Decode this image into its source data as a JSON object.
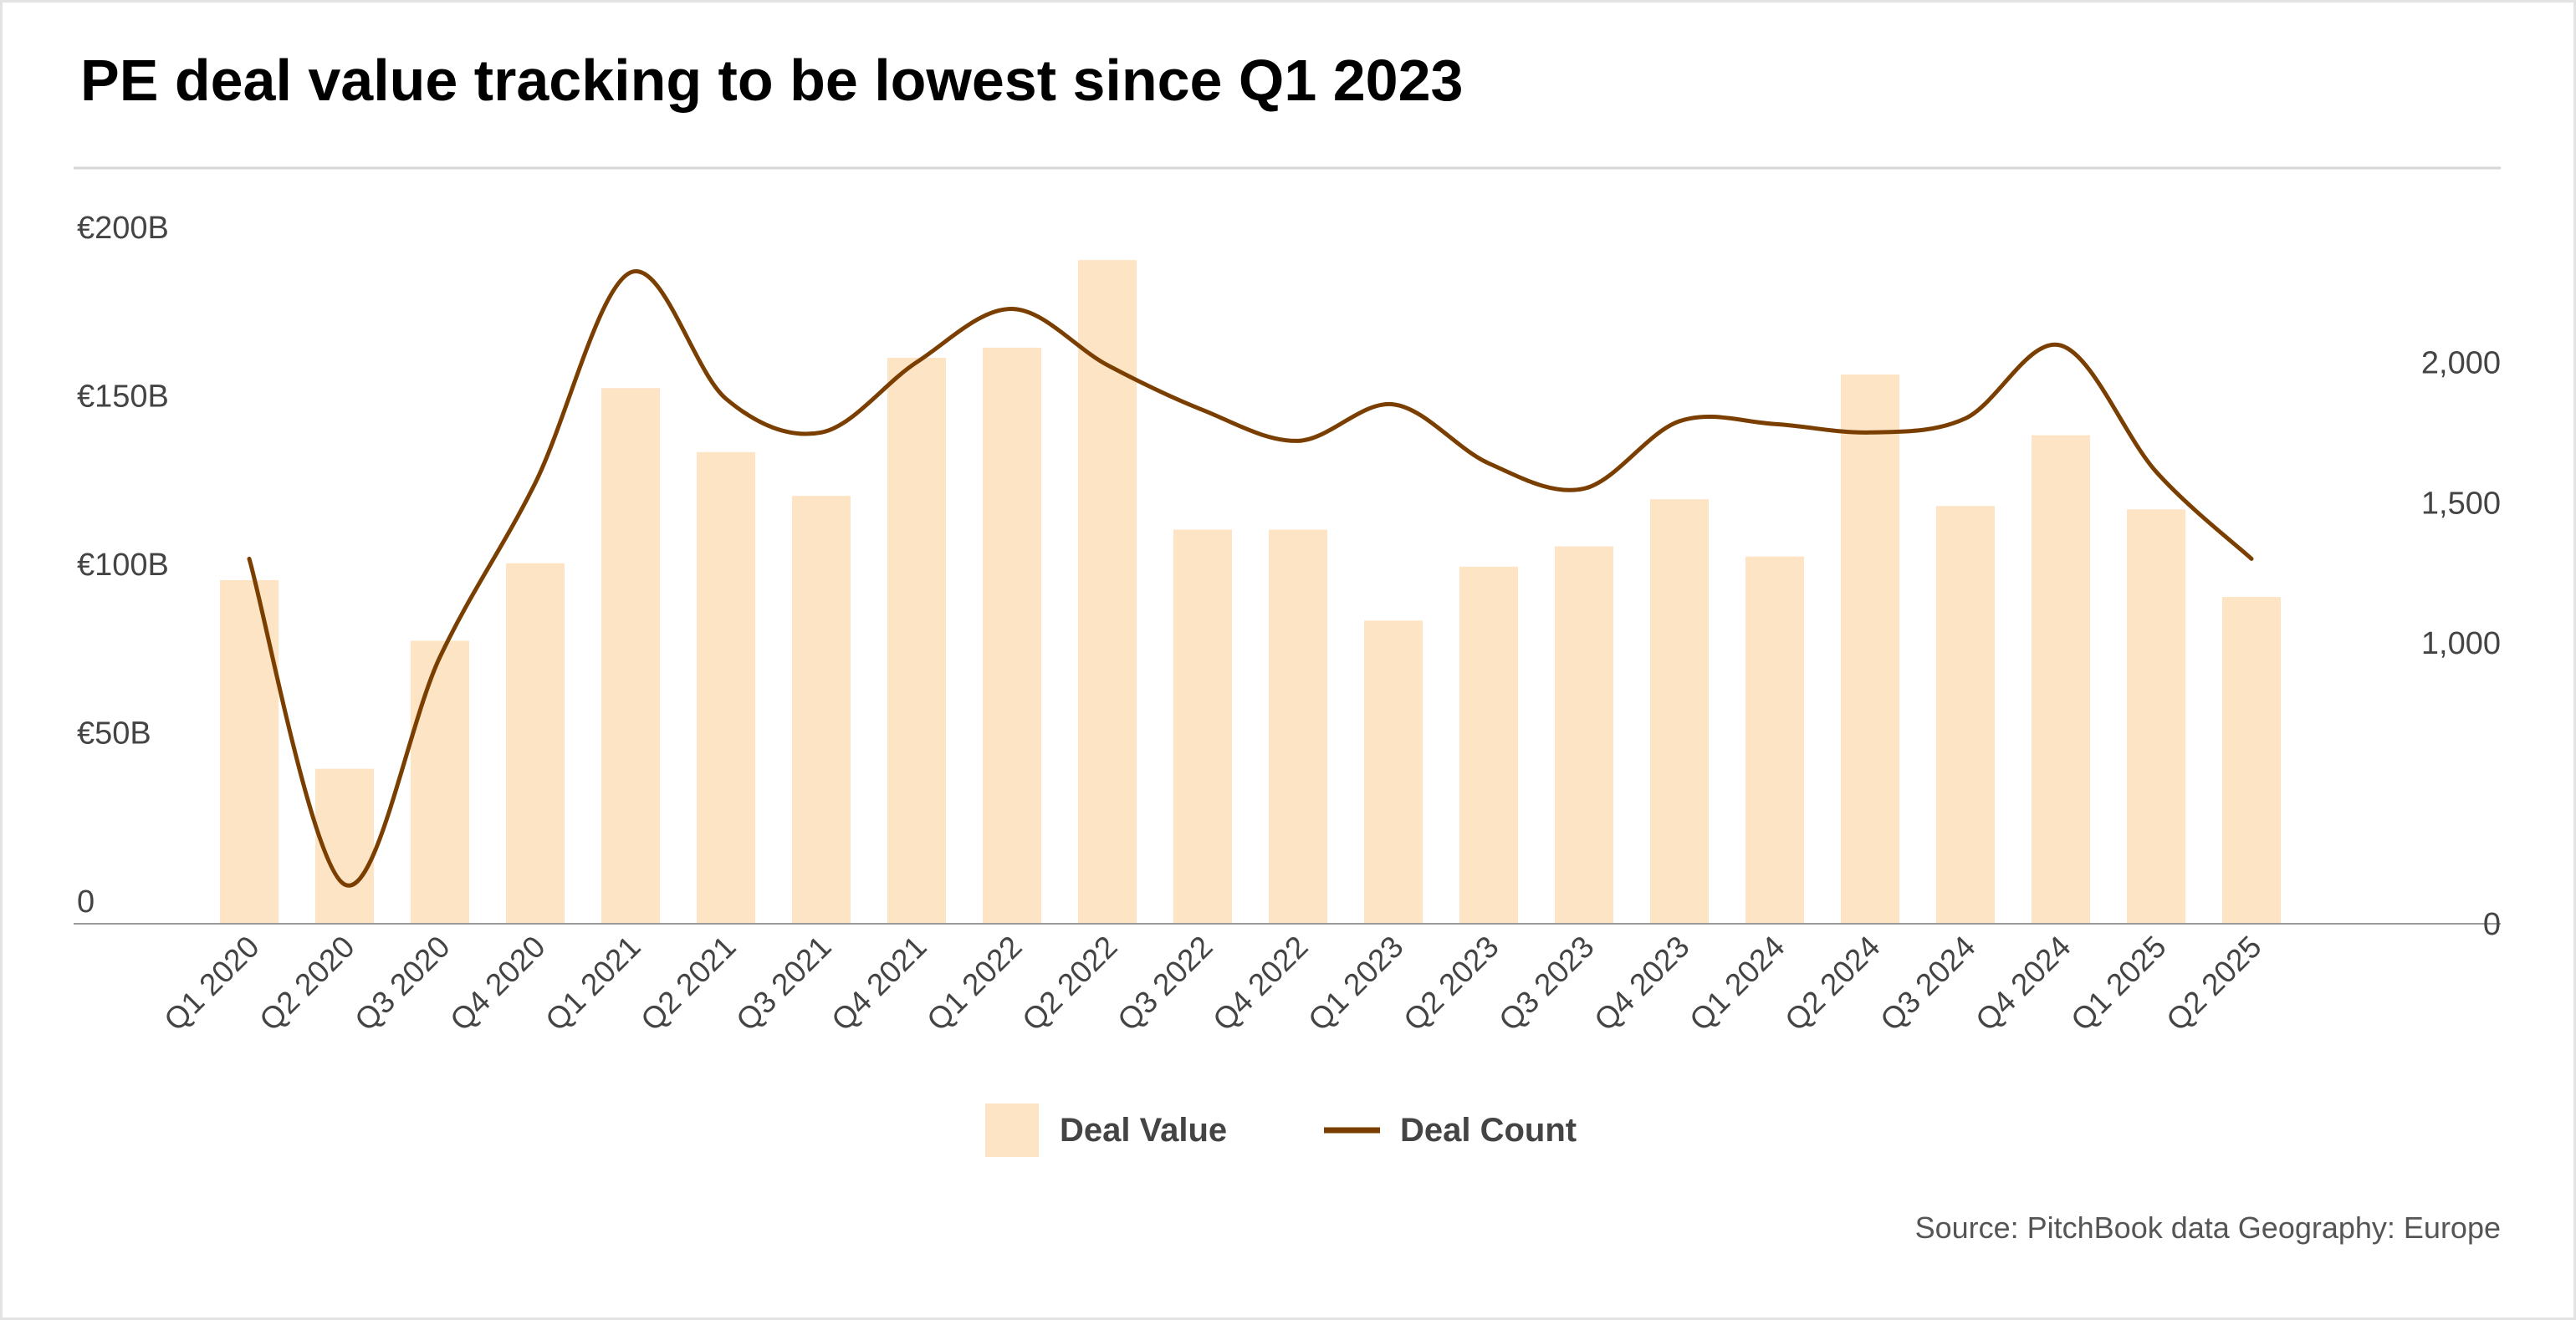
{
  "chart_data": {
    "type": "bar+line",
    "title": "PE deal value tracking to be lowest since Q1 2023",
    "categories": [
      "Q1 2020",
      "Q2 2020",
      "Q3 2020",
      "Q4 2020",
      "Q1 2021",
      "Q2 2021",
      "Q3 2021",
      "Q4 2021",
      "Q1 2022",
      "Q2 2022",
      "Q3 2022",
      "Q4 2022",
      "Q1 2023",
      "Q2 2023",
      "Q3 2023",
      "Q4 2023",
      "Q1 2024",
      "Q2 2024",
      "Q3 2024",
      "Q4 2024",
      "Q1 2025",
      "Q2 2025"
    ],
    "series": [
      {
        "name": "Deal Value",
        "kind": "bar",
        "axis": "left",
        "color": "#fde4c4",
        "values": [
          102,
          46,
          84,
          107,
          159,
          140,
          127,
          168,
          171,
          197,
          117,
          117,
          90,
          106,
          112,
          126,
          109,
          163,
          124,
          145,
          123,
          97
        ]
      },
      {
        "name": "Deal Count",
        "kind": "line",
        "axis": "right",
        "color": "#7a3f00",
        "values": [
          1300,
          140,
          950,
          1570,
          2320,
          1870,
          1750,
          2000,
          2190,
          1990,
          1830,
          1720,
          1850,
          1640,
          1550,
          1790,
          1780,
          1750,
          1800,
          2060,
          1610,
          1300
        ]
      }
    ],
    "y_left": {
      "range": [
        0,
        200
      ],
      "ticks": [
        0,
        50,
        100,
        150,
        200
      ],
      "tick_labels": [
        "0",
        "€50B",
        "€100B",
        "€150B",
        "€200B"
      ]
    },
    "y_right": {
      "range": [
        0,
        2400
      ],
      "ticks": [
        0,
        1000,
        1500,
        2000
      ],
      "tick_labels": [
        "0",
        "1,000",
        "1,500",
        "2,000"
      ]
    },
    "grid": false,
    "legend_position": "bottom-center",
    "source": "Source: PitchBook data Geography: Europe"
  }
}
